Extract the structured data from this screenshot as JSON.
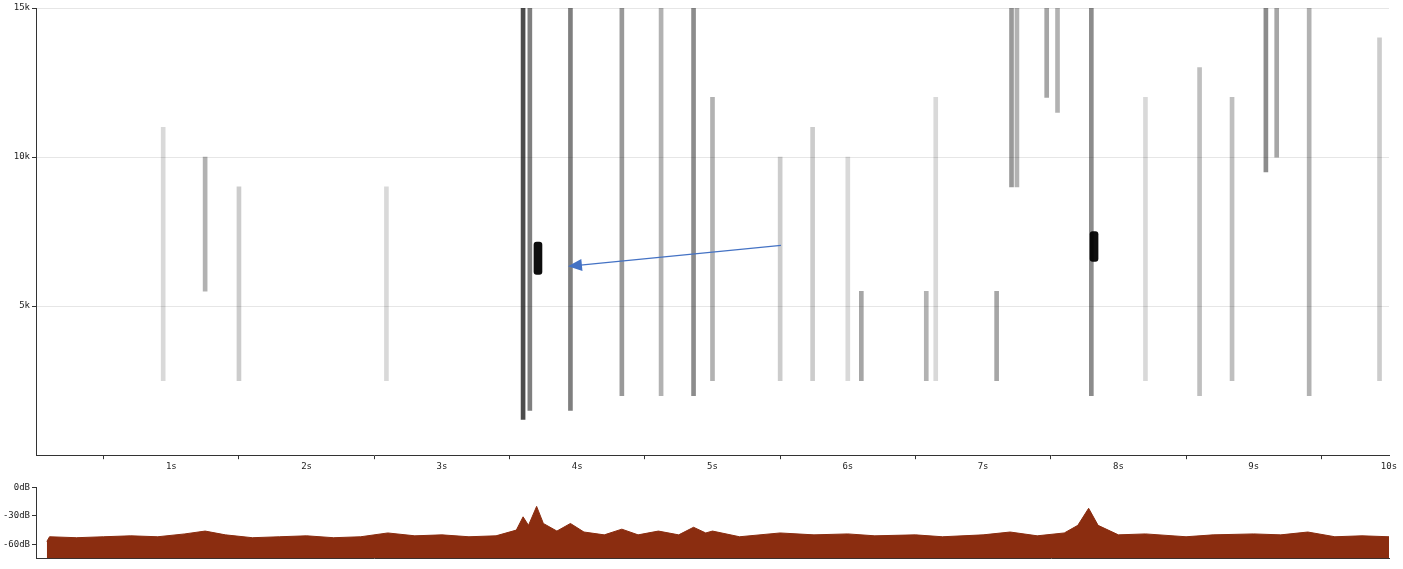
{
  "chart_data": [
    {
      "type": "spectrogram",
      "xlim": [
        0,
        10
      ],
      "xticks": [
        {
          "value": 1,
          "label": "1s"
        },
        {
          "value": 2,
          "label": "2s"
        },
        {
          "value": 3,
          "label": "3s"
        },
        {
          "value": 4,
          "label": "4s"
        },
        {
          "value": 5,
          "label": "5s"
        },
        {
          "value": 6,
          "label": "6s"
        },
        {
          "value": 7,
          "label": "7s"
        },
        {
          "value": 8,
          "label": "8s"
        },
        {
          "value": 9,
          "label": "9s"
        },
        {
          "value": 10,
          "label": "10s"
        }
      ],
      "ylim": [
        0,
        15000
      ],
      "yticks": [
        {
          "value": 5000,
          "label": "5k"
        },
        {
          "value": 10000,
          "label": "10k"
        },
        {
          "value": 15000,
          "label": "15k"
        }
      ],
      "grid": true,
      "streaks": {
        "color": "#000000",
        "t": [
          0.94,
          1.25,
          1.5,
          2.59,
          3.6,
          3.65,
          3.95,
          4.33,
          4.62,
          4.86,
          5.0,
          5.5,
          5.74,
          6.0,
          6.1,
          6.58,
          6.65,
          7.1,
          7.21,
          7.25,
          7.47,
          7.55,
          7.8,
          8.2,
          8.6,
          8.84,
          9.09,
          9.17,
          9.41,
          9.93
        ],
        "f_low": [
          2500,
          5500,
          2500,
          2500,
          1200,
          1500,
          1500,
          2000,
          2000,
          2000,
          2500,
          2500,
          2500,
          2500,
          2500,
          2500,
          2500,
          2500,
          9000,
          9000,
          12000,
          11500,
          2000,
          2500,
          2000,
          2500,
          9500,
          10000,
          2000,
          2500
        ],
        "f_high": [
          11000,
          10000,
          9000,
          9000,
          15000,
          15000,
          15000,
          15000,
          15000,
          15000,
          12000,
          10000,
          11000,
          10000,
          5500,
          5500,
          12000,
          5500,
          15000,
          15000,
          15000,
          15000,
          15000,
          12000,
          13000,
          12000,
          15000,
          15000,
          15000,
          14000
        ],
        "level": [
          0.15,
          0.3,
          0.2,
          0.15,
          0.7,
          0.5,
          0.5,
          0.4,
          0.3,
          0.45,
          0.3,
          0.2,
          0.2,
          0.15,
          0.35,
          0.3,
          0.15,
          0.35,
          0.4,
          0.3,
          0.35,
          0.3,
          0.45,
          0.15,
          0.25,
          0.25,
          0.45,
          0.35,
          0.3,
          0.2
        ]
      },
      "calls": {
        "color": "#000000",
        "t": [
          3.71,
          7.82
        ],
        "f_low": [
          6060,
          6500
        ],
        "f_high": [
          7150,
          7500
        ],
        "level": [
          0.95,
          0.95
        ]
      }
    },
    {
      "type": "area",
      "x": [
        0.08,
        0.1,
        0.3,
        0.5,
        0.7,
        0.9,
        1.1,
        1.25,
        1.4,
        1.6,
        1.8,
        2.0,
        2.2,
        2.4,
        2.6,
        2.8,
        3.0,
        3.2,
        3.4,
        3.55,
        3.6,
        3.64,
        3.7,
        3.75,
        3.85,
        3.95,
        4.05,
        4.2,
        4.33,
        4.45,
        4.6,
        4.75,
        4.86,
        4.95,
        5.0,
        5.2,
        5.5,
        5.75,
        6.0,
        6.2,
        6.5,
        6.7,
        7.0,
        7.2,
        7.4,
        7.6,
        7.7,
        7.78,
        7.85,
        8.0,
        8.2,
        8.5,
        8.7,
        9.0,
        9.2,
        9.4,
        9.6,
        9.8,
        10.0
      ],
      "values": [
        -57,
        -52,
        -53,
        -52,
        -51,
        -52,
        -49,
        -46,
        -50,
        -53,
        -52,
        -51,
        -53,
        -52,
        -48,
        -51,
        -50,
        -52,
        -51,
        -45,
        -31,
        -40,
        -20,
        -38,
        -46,
        -38,
        -47,
        -50,
        -44,
        -50,
        -46,
        -50,
        -42,
        -48,
        -46,
        -52,
        -48,
        -50,
        -49,
        -51,
        -50,
        -52,
        -50,
        -47,
        -51,
        -48,
        -40,
        -22,
        -40,
        -50,
        -49,
        -52,
        -50,
        -49,
        -50,
        -47,
        -52,
        -51,
        -52
      ],
      "color": "#8b2d10",
      "xlim": [
        0,
        10
      ],
      "ylim": [
        -75,
        0
      ],
      "yticks": [
        {
          "value": 0,
          "label": "0dB"
        },
        {
          "value": -30,
          "label": "-30dB"
        },
        {
          "value": -60,
          "label": "-60dB"
        }
      ],
      "tick_labels": "y",
      "grid": false
    }
  ]
}
